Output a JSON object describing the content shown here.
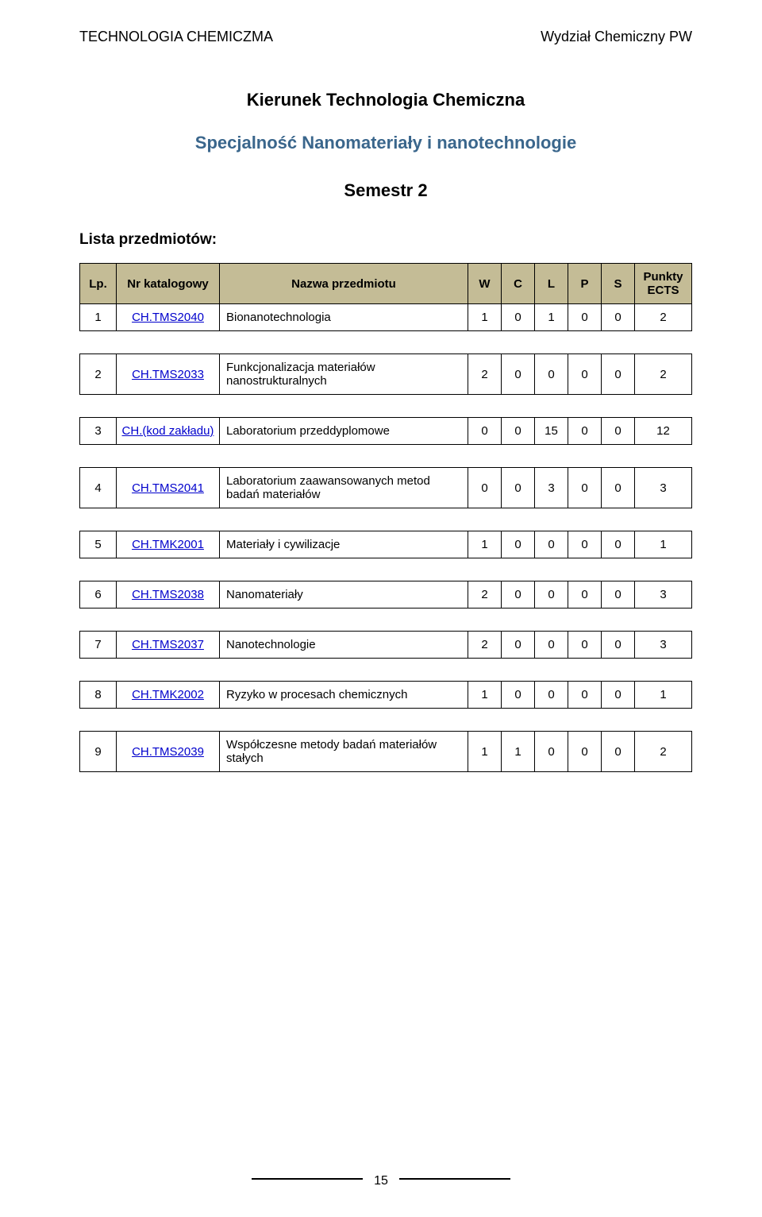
{
  "header": {
    "left": "TECHNOLOGIA CHEMICZMA",
    "right": "Wydział Chemiczny PW"
  },
  "title": "Kierunek Technologia Chemiczna",
  "subtitle": "Specjalność Nanomateriały i nanotechnologie",
  "semester": "Semestr 2",
  "list_label": "Lista przedmiotów:",
  "columns": {
    "lp": "Lp.",
    "code": "Nr katalogowy",
    "name": "Nazwa przedmiotu",
    "w": "W",
    "c": "C",
    "l": "L",
    "p": "P",
    "s": "S",
    "ects": "Punkty ECTS"
  },
  "rows": [
    {
      "lp": "1",
      "code": "CH.TMS2040",
      "code_link": true,
      "name": "Bionanotechnologia",
      "w": "1",
      "c": "0",
      "l": "1",
      "p": "0",
      "s": "0",
      "ects": "2"
    },
    {
      "lp": "2",
      "code": "CH.TMS2033",
      "code_link": true,
      "name": "Funkcjonalizacja materiałów nanostrukturalnych",
      "w": "2",
      "c": "0",
      "l": "0",
      "p": "0",
      "s": "0",
      "ects": "2"
    },
    {
      "lp": "3",
      "code": "CH.(kod zakładu)",
      "code_link": true,
      "name": "Laboratorium przeddyplomowe",
      "w": "0",
      "c": "0",
      "l": "15",
      "p": "0",
      "s": "0",
      "ects": "12"
    },
    {
      "lp": "4",
      "code": "CH.TMS2041",
      "code_link": true,
      "name": "Laboratorium zaawansowanych metod badań materiałów",
      "w": "0",
      "c": "0",
      "l": "3",
      "p": "0",
      "s": "0",
      "ects": "3"
    },
    {
      "lp": "5",
      "code": "CH.TMK2001",
      "code_link": true,
      "name": "Materiały i cywilizacje",
      "w": "1",
      "c": "0",
      "l": "0",
      "p": "0",
      "s": "0",
      "ects": "1"
    },
    {
      "lp": "6",
      "code": "CH.TMS2038",
      "code_link": true,
      "name": "Nanomateriały",
      "w": "2",
      "c": "0",
      "l": "0",
      "p": "0",
      "s": "0",
      "ects": "3"
    },
    {
      "lp": "7",
      "code": "CH.TMS2037",
      "code_link": true,
      "name": "Nanotechnologie",
      "w": "2",
      "c": "0",
      "l": "0",
      "p": "0",
      "s": "0",
      "ects": "3"
    },
    {
      "lp": "8",
      "code": "CH.TMK2002",
      "code_link": true,
      "name": "Ryzyko w procesach chemicznych",
      "w": "1",
      "c": "0",
      "l": "0",
      "p": "0",
      "s": "0",
      "ects": "1"
    },
    {
      "lp": "9",
      "code": "CH.TMS2039",
      "code_link": true,
      "name": "Współczesne metody badań materiałów stałych",
      "w": "1",
      "c": "1",
      "l": "0",
      "p": "0",
      "s": "0",
      "ects": "2"
    }
  ],
  "styling": {
    "header_bg": "#c4bc96",
    "border_color": "#000000",
    "link_color": "#0000cc",
    "subtitle_color": "#3a668c",
    "background": "#ffffff",
    "font_family": "Verdana, Arial, sans-serif",
    "title_fontsize": 22,
    "body_fontsize": 15,
    "row_gap": 28,
    "col_widths": {
      "lp": 46,
      "code": 130,
      "num": 42,
      "ects": 72
    }
  },
  "page_number": "15"
}
